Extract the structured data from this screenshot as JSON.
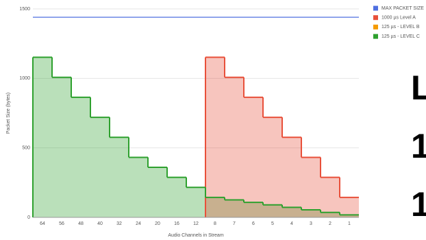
{
  "chart_data": {
    "type": "step-area",
    "x_label": "Audio Channels in Stream",
    "y_label": "Packet Size (bytes)",
    "categories": [
      "64",
      "56",
      "48",
      "40",
      "32",
      "24",
      "20",
      "16",
      "12",
      "8",
      "7",
      "6",
      "5",
      "4",
      "3",
      "2",
      "1"
    ],
    "series": [
      {
        "name": "MAX PACKET SIZE",
        "color": "#4f6fe0",
        "style": "line",
        "values": [
          1440,
          1440,
          1440,
          1440,
          1440,
          1440,
          1440,
          1440,
          1440,
          1440,
          1440,
          1440,
          1440,
          1440,
          1440,
          1440,
          1440
        ]
      },
      {
        "name": "1000 µs Level A",
        "color": "#e8503a",
        "style": "area",
        "values": [
          null,
          null,
          null,
          null,
          null,
          null,
          null,
          null,
          null,
          1152,
          1008,
          864,
          720,
          576,
          432,
          288,
          144
        ]
      },
      {
        "name": "125 µs - LEVEL B",
        "color": "#f59b00",
        "style": "area",
        "values": [
          null,
          null,
          null,
          null,
          null,
          null,
          null,
          null,
          null,
          null,
          null,
          null,
          null,
          null,
          null,
          null,
          null
        ]
      },
      {
        "name": "125 µs - LEVEL C",
        "color": "#2ea02e",
        "style": "area",
        "values": [
          1152,
          1008,
          864,
          720,
          576,
          432,
          360,
          288,
          216,
          144,
          126,
          108,
          90,
          72,
          54,
          36,
          18
        ]
      }
    ],
    "ylim": [
      0,
      1500
    ],
    "yticks": [
      0,
      500,
      1000,
      1500
    ],
    "grid": true,
    "legend": "top-right"
  },
  "side_text": [
    "L",
    "1",
    "1"
  ]
}
